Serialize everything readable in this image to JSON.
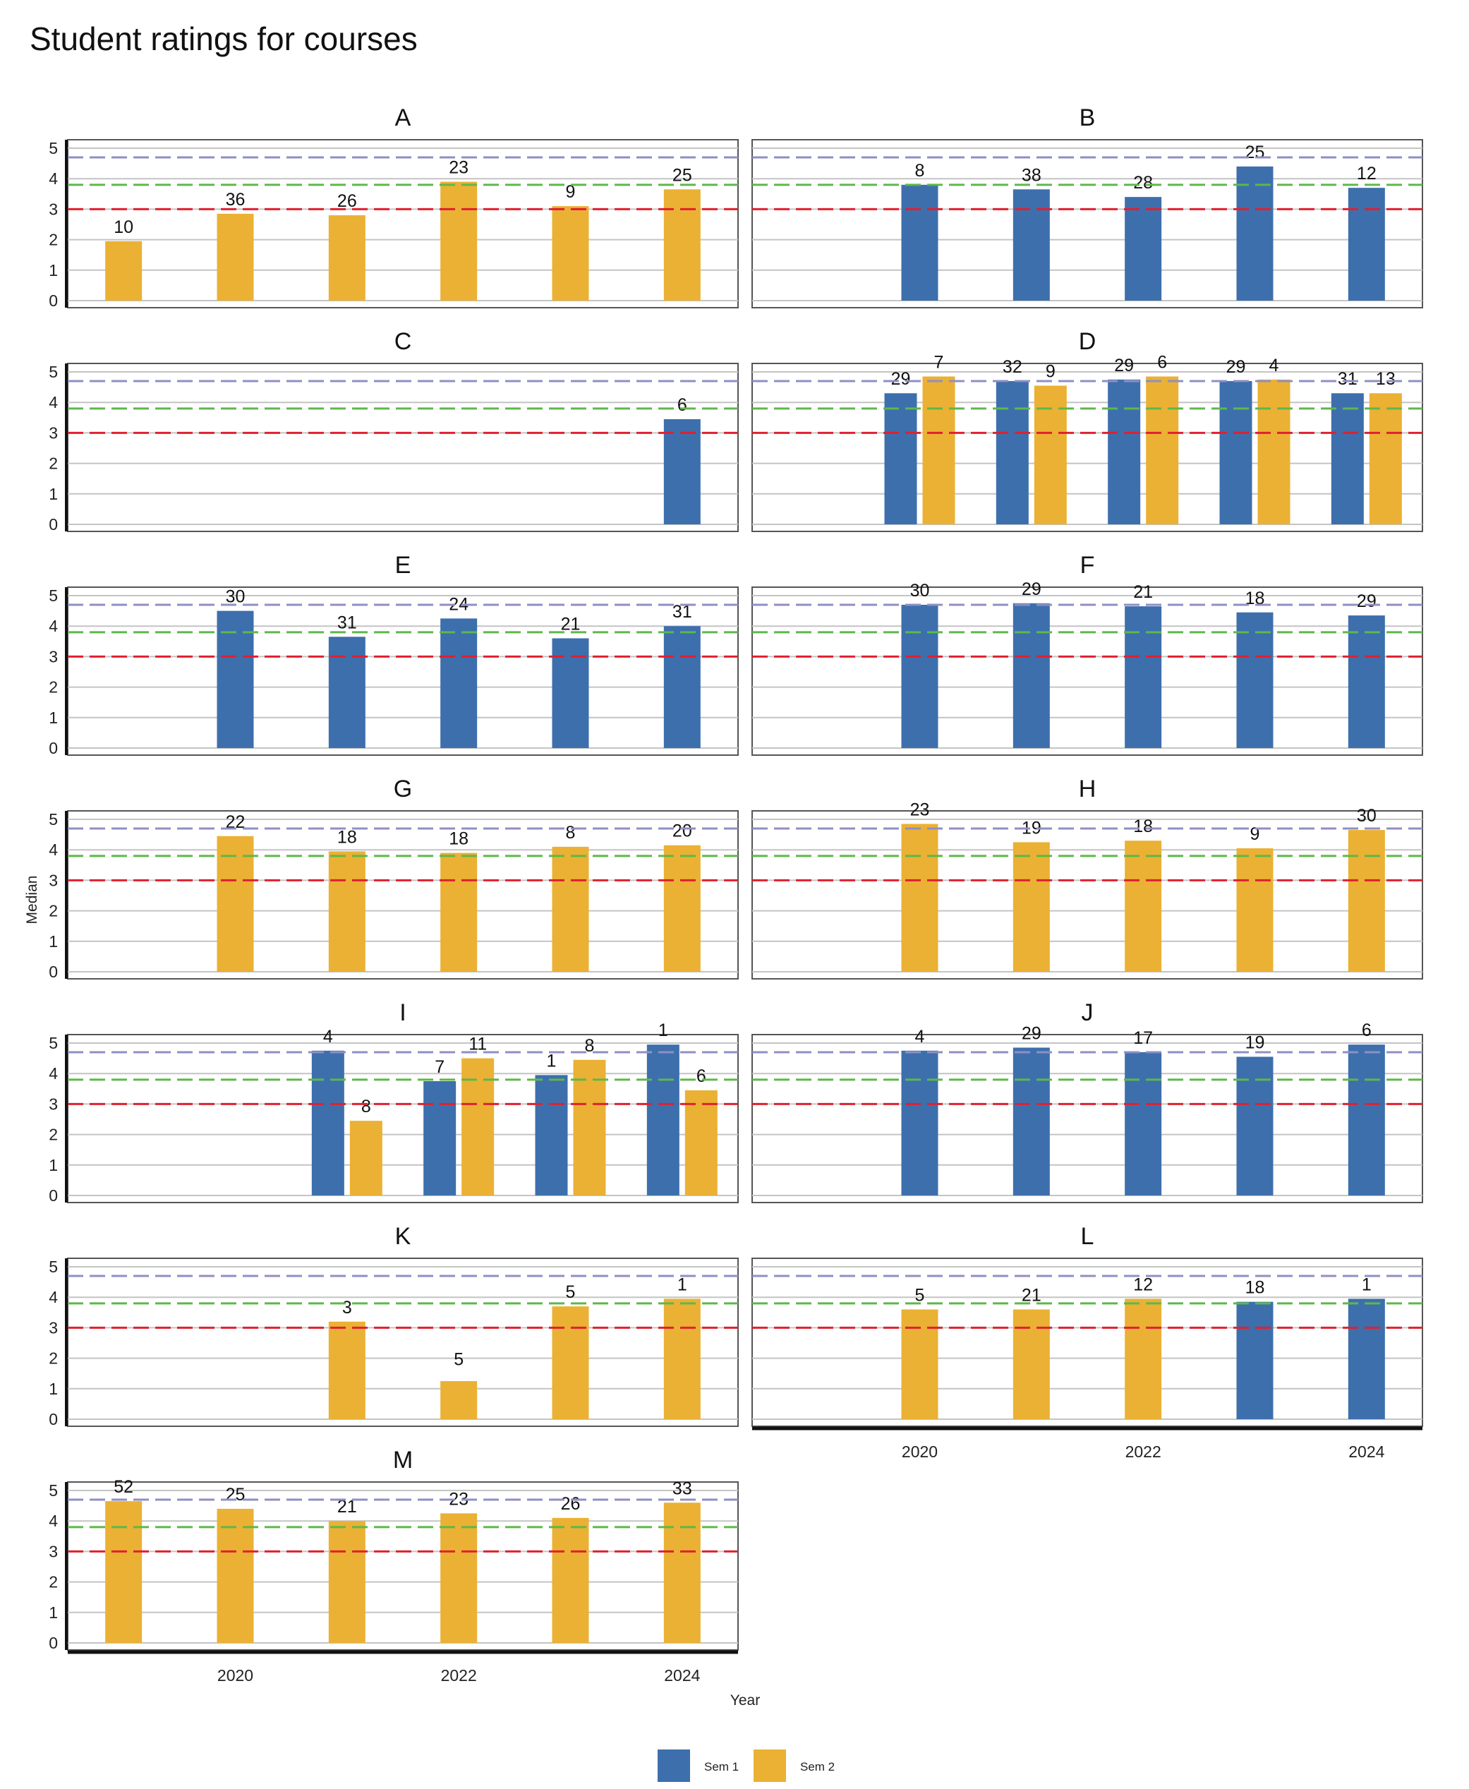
{
  "title": "Student ratings for courses",
  "chart_data": {
    "type": "bar",
    "layout": "faceted",
    "title": "Student ratings for courses",
    "xlabel": "Year",
    "ylabel": "Median",
    "ylim": [
      0,
      5
    ],
    "y_ticks": [
      "0",
      "1",
      "2",
      "3",
      "4",
      "5"
    ],
    "x_range": [
      2018.5,
      2024.5
    ],
    "x_ticks": [
      2020,
      2022,
      2024
    ],
    "x_tick_labels": [
      "2020",
      "2022",
      "2024"
    ],
    "grid": true,
    "legend_position": "bottom",
    "reference_lines": [
      {
        "value": 4.7,
        "color": "#8f8fc4",
        "style": "dashed"
      },
      {
        "value": 3.8,
        "color": "#5db84a",
        "style": "dashed"
      },
      {
        "value": 3.0,
        "color": "#e0202f",
        "style": "dashed"
      }
    ],
    "series": [
      {
        "name": "Sem 1",
        "color": "#3d6fad"
      },
      {
        "name": "Sem 2",
        "color": "#ebb134"
      }
    ],
    "panels": [
      {
        "name": "A",
        "bars": [
          {
            "year": 2019,
            "sem": 2,
            "value": 1.95,
            "n": "10"
          },
          {
            "year": 2020,
            "sem": 2,
            "value": 2.85,
            "n": "36"
          },
          {
            "year": 2021,
            "sem": 2,
            "value": 2.8,
            "n": "26"
          },
          {
            "year": 2022,
            "sem": 2,
            "value": 3.9,
            "n": "23"
          },
          {
            "year": 2023,
            "sem": 2,
            "value": 3.1,
            "n": "9"
          },
          {
            "year": 2024,
            "sem": 2,
            "value": 3.65,
            "n": "25"
          }
        ]
      },
      {
        "name": "B",
        "bars": [
          {
            "year": 2020,
            "sem": 1,
            "value": 3.8,
            "n": "8"
          },
          {
            "year": 2021,
            "sem": 1,
            "value": 3.65,
            "n": "38"
          },
          {
            "year": 2022,
            "sem": 1,
            "value": 3.4,
            "n": "28"
          },
          {
            "year": 2023,
            "sem": 1,
            "value": 4.4,
            "n": "25"
          },
          {
            "year": 2024,
            "sem": 1,
            "value": 3.7,
            "n": "12"
          }
        ]
      },
      {
        "name": "C",
        "bars": [
          {
            "year": 2024,
            "sem": 1,
            "value": 3.45,
            "n": "6"
          }
        ]
      },
      {
        "name": "D",
        "bars": [
          {
            "year": 2020,
            "sem": 1,
            "value": 4.3,
            "n": "29"
          },
          {
            "year": 2020,
            "sem": 2,
            "value": 4.85,
            "n": "7"
          },
          {
            "year": 2021,
            "sem": 1,
            "value": 4.7,
            "n": "32"
          },
          {
            "year": 2021,
            "sem": 2,
            "value": 4.55,
            "n": "9"
          },
          {
            "year": 2022,
            "sem": 1,
            "value": 4.75,
            "n": "29"
          },
          {
            "year": 2022,
            "sem": 2,
            "value": 4.85,
            "n": "6"
          },
          {
            "year": 2023,
            "sem": 1,
            "value": 4.7,
            "n": "29"
          },
          {
            "year": 2023,
            "sem": 2,
            "value": 4.75,
            "n": "4"
          },
          {
            "year": 2024,
            "sem": 1,
            "value": 4.3,
            "n": "31"
          },
          {
            "year": 2024,
            "sem": 2,
            "value": 4.3,
            "n": "13"
          }
        ]
      },
      {
        "name": "E",
        "bars": [
          {
            "year": 2020,
            "sem": 1,
            "value": 4.5,
            "n": "30"
          },
          {
            "year": 2021,
            "sem": 1,
            "value": 3.65,
            "n": "31"
          },
          {
            "year": 2022,
            "sem": 1,
            "value": 4.25,
            "n": "24"
          },
          {
            "year": 2023,
            "sem": 1,
            "value": 3.6,
            "n": "21"
          },
          {
            "year": 2024,
            "sem": 1,
            "value": 4.0,
            "n": "31"
          }
        ]
      },
      {
        "name": "F",
        "bars": [
          {
            "year": 2020,
            "sem": 1,
            "value": 4.7,
            "n": "30"
          },
          {
            "year": 2021,
            "sem": 1,
            "value": 4.75,
            "n": "29"
          },
          {
            "year": 2022,
            "sem": 1,
            "value": 4.65,
            "n": "21"
          },
          {
            "year": 2023,
            "sem": 1,
            "value": 4.45,
            "n": "18"
          },
          {
            "year": 2024,
            "sem": 1,
            "value": 4.35,
            "n": "29"
          }
        ]
      },
      {
        "name": "G",
        "bars": [
          {
            "year": 2020,
            "sem": 2,
            "value": 4.45,
            "n": "22"
          },
          {
            "year": 2021,
            "sem": 2,
            "value": 3.95,
            "n": "18"
          },
          {
            "year": 2022,
            "sem": 2,
            "value": 3.9,
            "n": "18"
          },
          {
            "year": 2023,
            "sem": 2,
            "value": 4.1,
            "n": "8"
          },
          {
            "year": 2024,
            "sem": 2,
            "value": 4.15,
            "n": "20"
          }
        ]
      },
      {
        "name": "H",
        "bars": [
          {
            "year": 2020,
            "sem": 2,
            "value": 4.85,
            "n": "23"
          },
          {
            "year": 2021,
            "sem": 2,
            "value": 4.25,
            "n": "19"
          },
          {
            "year": 2022,
            "sem": 2,
            "value": 4.3,
            "n": "18"
          },
          {
            "year": 2023,
            "sem": 2,
            "value": 4.05,
            "n": "9"
          },
          {
            "year": 2024,
            "sem": 2,
            "value": 4.65,
            "n": "30"
          }
        ]
      },
      {
        "name": "I",
        "bars": [
          {
            "year": 2021,
            "sem": 1,
            "value": 4.75,
            "n": "4"
          },
          {
            "year": 2021,
            "sem": 2,
            "value": 2.45,
            "n": "8"
          },
          {
            "year": 2022,
            "sem": 1,
            "value": 3.75,
            "n": "7"
          },
          {
            "year": 2022,
            "sem": 2,
            "value": 4.5,
            "n": "11"
          },
          {
            "year": 2023,
            "sem": 1,
            "value": 3.95,
            "n": "1"
          },
          {
            "year": 2023,
            "sem": 2,
            "value": 4.45,
            "n": "8"
          },
          {
            "year": 2024,
            "sem": 1,
            "value": 4.95,
            "n": "1"
          },
          {
            "year": 2024,
            "sem": 2,
            "value": 3.45,
            "n": "6"
          }
        ]
      },
      {
        "name": "J",
        "bars": [
          {
            "year": 2020,
            "sem": 1,
            "value": 4.75,
            "n": "4"
          },
          {
            "year": 2021,
            "sem": 1,
            "value": 4.85,
            "n": "29"
          },
          {
            "year": 2022,
            "sem": 1,
            "value": 4.7,
            "n": "17"
          },
          {
            "year": 2023,
            "sem": 1,
            "value": 4.55,
            "n": "19"
          },
          {
            "year": 2024,
            "sem": 1,
            "value": 4.95,
            "n": "6"
          }
        ]
      },
      {
        "name": "K",
        "bars": [
          {
            "year": 2021,
            "sem": 2,
            "value": 3.2,
            "n": "3"
          },
          {
            "year": 2022,
            "sem": 2,
            "value": 1.25,
            "n": "5"
          },
          {
            "year": 2023,
            "sem": 2,
            "value": 3.7,
            "n": "5"
          },
          {
            "year": 2024,
            "sem": 2,
            "value": 3.95,
            "n": "1"
          }
        ]
      },
      {
        "name": "L",
        "bars": [
          {
            "year": 2020,
            "sem": 2,
            "value": 3.6,
            "n": "5"
          },
          {
            "year": 2021,
            "sem": 2,
            "value": 3.6,
            "n": "21"
          },
          {
            "year": 2022,
            "sem": 2,
            "value": 3.95,
            "n": "12"
          },
          {
            "year": 2023,
            "sem": 1,
            "value": 3.85,
            "n": "18"
          },
          {
            "year": 2024,
            "sem": 1,
            "value": 3.95,
            "n": "1"
          }
        ]
      },
      {
        "name": "M",
        "bars": [
          {
            "year": 2019,
            "sem": 2,
            "value": 4.65,
            "n": "52"
          },
          {
            "year": 2020,
            "sem": 2,
            "value": 4.4,
            "n": "25"
          },
          {
            "year": 2021,
            "sem": 2,
            "value": 4.0,
            "n": "21"
          },
          {
            "year": 2022,
            "sem": 2,
            "value": 4.25,
            "n": "23"
          },
          {
            "year": 2023,
            "sem": 2,
            "value": 4.1,
            "n": "26"
          },
          {
            "year": 2024,
            "sem": 2,
            "value": 4.6,
            "n": "33"
          }
        ]
      }
    ]
  }
}
